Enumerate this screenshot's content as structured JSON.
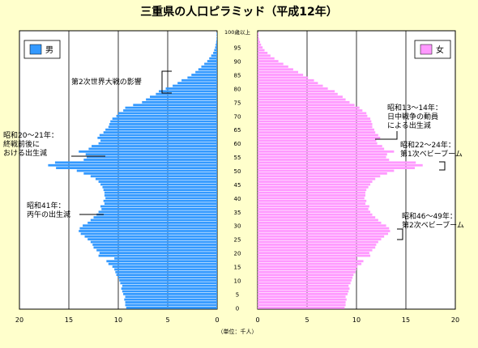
{
  "chart_data": {
    "type": "bar",
    "title": "三重県の人口ピラミッド（平成12年）",
    "unit_label": "（単位：千人）",
    "top_age_label": "100歳以上",
    "age_ticks": [
      0,
      5,
      10,
      15,
      20,
      25,
      30,
      35,
      40,
      45,
      50,
      55,
      60,
      65,
      70,
      75,
      80,
      85,
      90,
      95
    ],
    "x_ticks": [
      20,
      15,
      10,
      5,
      0
    ],
    "xlim": [
      0,
      20
    ],
    "grid": true,
    "legend": {
      "male": "男",
      "female": "女"
    },
    "colors": {
      "male": "#3399ff",
      "female": "#ff99ff",
      "background": "#ffffcc",
      "plot_background": "#ffffff"
    },
    "ages": [
      0,
      1,
      2,
      3,
      4,
      5,
      6,
      7,
      8,
      9,
      10,
      11,
      12,
      13,
      14,
      15,
      16,
      17,
      18,
      19,
      20,
      21,
      22,
      23,
      24,
      25,
      26,
      27,
      28,
      29,
      30,
      31,
      32,
      33,
      34,
      35,
      36,
      37,
      38,
      39,
      40,
      41,
      42,
      43,
      44,
      45,
      46,
      47,
      48,
      49,
      50,
      51,
      52,
      53,
      54,
      55,
      56,
      57,
      58,
      59,
      60,
      61,
      62,
      63,
      64,
      65,
      66,
      67,
      68,
      69,
      70,
      71,
      72,
      73,
      74,
      75,
      76,
      77,
      78,
      79,
      80,
      81,
      82,
      83,
      84,
      85,
      86,
      87,
      88,
      89,
      90,
      91,
      92,
      93,
      94,
      95,
      96,
      97,
      98,
      99,
      100
    ],
    "series": [
      {
        "name": "男",
        "values": [
          9.2,
          9.3,
          9.3,
          9.4,
          9.3,
          9.5,
          9.6,
          9.7,
          9.6,
          9.8,
          9.9,
          10.0,
          10.2,
          10.3,
          10.4,
          10.6,
          11.0,
          11.2,
          10.4,
          12.0,
          11.9,
          12.2,
          12.5,
          12.6,
          12.8,
          13.1,
          13.4,
          13.8,
          14.0,
          13.9,
          13.6,
          13.1,
          12.8,
          12.5,
          12.2,
          12.0,
          11.7,
          11.8,
          11.4,
          11.5,
          11.3,
          11.4,
          11.4,
          11.5,
          11.6,
          11.8,
          12.0,
          12.3,
          12.8,
          13.5,
          14.2,
          16.3,
          17.1,
          16.4,
          13.5,
          13.2,
          13.3,
          14.0,
          13.0,
          12.7,
          12.0,
          11.8,
          12.1,
          11.9,
          11.5,
          11.3,
          11.0,
          10.9,
          10.8,
          10.6,
          10.2,
          10.0,
          9.5,
          9.3,
          8.5,
          7.6,
          7.2,
          6.8,
          6.2,
          5.9,
          5.2,
          4.5,
          4.0,
          3.6,
          3.0,
          2.6,
          2.2,
          1.9,
          1.6,
          1.3,
          1.0,
          0.8,
          0.6,
          0.4,
          0.3,
          0.2,
          0.15,
          0.1,
          0.06,
          0.04,
          0.05
        ]
      },
      {
        "name": "女",
        "values": [
          8.8,
          8.9,
          8.9,
          9.0,
          8.9,
          9.1,
          9.2,
          9.3,
          9.2,
          9.4,
          9.5,
          9.6,
          9.7,
          9.9,
          10.0,
          10.1,
          10.5,
          10.7,
          10.0,
          11.4,
          11.3,
          11.6,
          11.9,
          12.0,
          12.2,
          12.5,
          12.8,
          13.2,
          13.4,
          13.3,
          13.0,
          12.5,
          12.2,
          11.9,
          11.6,
          11.4,
          11.2,
          11.3,
          10.9,
          11.0,
          10.8,
          10.9,
          10.9,
          11.0,
          11.2,
          11.4,
          11.6,
          11.9,
          12.4,
          13.1,
          13.8,
          15.9,
          16.7,
          16.0,
          13.3,
          13.0,
          13.1,
          13.8,
          12.8,
          12.6,
          12.1,
          12.0,
          12.4,
          12.2,
          11.9,
          11.8,
          11.6,
          11.6,
          11.5,
          11.4,
          11.1,
          11.0,
          10.6,
          10.3,
          9.8,
          9.3,
          8.9,
          8.6,
          8.1,
          7.8,
          7.1,
          6.6,
          6.1,
          5.7,
          5.1,
          4.6,
          4.1,
          3.6,
          3.1,
          2.6,
          2.1,
          1.7,
          1.3,
          1.0,
          0.7,
          0.5,
          0.35,
          0.25,
          0.15,
          0.1,
          0.1
        ]
      }
    ],
    "annotations": [
      {
        "id": "ww2",
        "lines": [
          "第2次世界大戦の影響"
        ]
      },
      {
        "id": "showa13",
        "lines": [
          "昭和13～14年：",
          "日中戦争の動員",
          "による出生減"
        ]
      },
      {
        "id": "showa20",
        "lines": [
          "昭和20～21年：",
          "終戦前後に",
          "おける出生減"
        ]
      },
      {
        "id": "baby1",
        "lines": [
          "昭和22～24年：",
          "第1次ベビーブーム"
        ]
      },
      {
        "id": "showa41",
        "lines": [
          "昭和41年：",
          "丙午の出生減"
        ]
      },
      {
        "id": "baby2",
        "lines": [
          "昭和46～49年：",
          "第2次ベビーブーム"
        ]
      }
    ]
  }
}
